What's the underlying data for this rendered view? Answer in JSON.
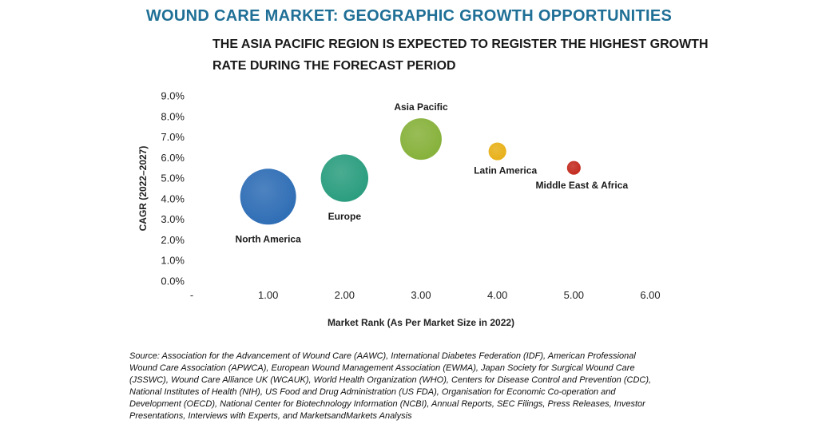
{
  "header": {
    "title": "WOUND CARE MARKET: GEOGRAPHIC GROWTH OPPORTUNITIES",
    "subtitle_line1": "THE ASIA PACIFIC REGION IS EXPECTED TO REGISTER THE HIGHEST GROWTH",
    "subtitle_line2": "RATE DURING THE FORECAST PERIOD"
  },
  "chart_data": {
    "type": "scatter",
    "subtype": "bubble",
    "xlabel": "Market Rank (As Per Market Size in 2022)",
    "ylabel": "CAGR (2022–2027)",
    "xlim": [
      0,
      6
    ],
    "ylim": [
      0,
      9
    ],
    "x_tick_labels": [
      "-",
      "1.00",
      "2.00",
      "3.00",
      "4.00",
      "5.00",
      "6.00"
    ],
    "y_tick_labels": [
      "0.0%",
      "1.0%",
      "2.0%",
      "3.0%",
      "4.0%",
      "5.0%",
      "6.0%",
      "7.0%",
      "8.0%",
      "9.0%"
    ],
    "grid": false,
    "points": [
      {
        "label": "North America",
        "x": 1,
        "y": 4.1,
        "size": 1.0,
        "color": "#2e6db5",
        "label_pos": "below"
      },
      {
        "label": "Europe",
        "x": 2,
        "y": 5.0,
        "size": 0.72,
        "color": "#2a9d7e",
        "label_pos": "below"
      },
      {
        "label": "Asia Pacific",
        "x": 3,
        "y": 6.9,
        "size": 0.55,
        "color": "#86b13a",
        "label_pos": "above"
      },
      {
        "label": "Latin America",
        "x": 4,
        "y": 6.3,
        "size": 0.1,
        "color": "#e8b017",
        "label_pos": "below"
      },
      {
        "label": "Middle East & Africa",
        "x": 5,
        "y": 5.5,
        "size": 0.06,
        "color": "#c32a1e",
        "label_pos": "below"
      }
    ]
  },
  "source": {
    "lines": [
      "Source: Association for the Advancement of Wound Care (AAWC), International Diabetes Federation (IDF), American Professional",
      "Wound Care Association (APWCA), European Wound Management Association (EWMA), Japan Society for Surgical Wound Care",
      "(JSSWC), Wound Care Alliance UK (WCAUK), World Health Organization (WHO), Centers for Disease Control and Prevention (CDC),",
      "National Institutes of Health (NIH), US Food and Drug Administration (US FDA), Organisation for Economic Co-operation and",
      "Development (OECD), National Center for Biotechnology Information (NCBI), Annual Reports, SEC Filings, Press Releases, Investor",
      "Presentations, Interviews with Experts, and MarketsandMarkets Analysis"
    ]
  }
}
